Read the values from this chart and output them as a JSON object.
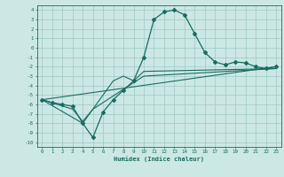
{
  "title": "",
  "xlabel": "Humidex (Indice chaleur)",
  "ylabel": "",
  "xlim": [
    -0.5,
    23.5
  ],
  "ylim": [
    -10.5,
    4.5
  ],
  "yticks": [
    4,
    3,
    2,
    1,
    0,
    -1,
    -2,
    -3,
    -4,
    -5,
    -6,
    -7,
    -8,
    -9,
    -10
  ],
  "xticks": [
    0,
    1,
    2,
    3,
    4,
    5,
    6,
    7,
    8,
    9,
    10,
    11,
    12,
    13,
    14,
    15,
    16,
    17,
    18,
    19,
    20,
    21,
    22,
    23
  ],
  "bg_color": "#cce8e4",
  "grid_color": "#9dc8c4",
  "line_color": "#1a6b60",
  "line1": [
    [
      0,
      -5.5
    ],
    [
      1,
      -5.8
    ],
    [
      2,
      -6.0
    ],
    [
      3,
      -6.2
    ],
    [
      4,
      -8.0
    ],
    [
      5,
      -9.5
    ],
    [
      6,
      -6.8
    ],
    [
      7,
      -5.5
    ],
    [
      8,
      -4.5
    ],
    [
      9,
      -3.5
    ],
    [
      10,
      -1.0
    ],
    [
      11,
      3.0
    ],
    [
      12,
      3.8
    ],
    [
      13,
      4.0
    ],
    [
      14,
      3.5
    ],
    [
      15,
      1.5
    ],
    [
      16,
      -0.5
    ],
    [
      17,
      -1.5
    ],
    [
      18,
      -1.8
    ],
    [
      19,
      -1.5
    ],
    [
      20,
      -1.6
    ],
    [
      21,
      -2.0
    ],
    [
      22,
      -2.2
    ],
    [
      23,
      -2.0
    ]
  ],
  "line2": [
    [
      0,
      -5.5
    ],
    [
      23,
      -2.0
    ]
  ],
  "line3": [
    [
      0,
      -5.5
    ],
    [
      4,
      -8.0
    ],
    [
      5,
      -6.5
    ],
    [
      10,
      -3.0
    ],
    [
      23,
      -2.2
    ]
  ],
  "line4": [
    [
      0,
      -5.5
    ],
    [
      3,
      -6.5
    ],
    [
      4,
      -7.8
    ],
    [
      5,
      -6.5
    ],
    [
      6,
      -5.0
    ],
    [
      7,
      -3.5
    ],
    [
      8,
      -3.0
    ],
    [
      9,
      -3.5
    ],
    [
      10,
      -2.5
    ],
    [
      23,
      -2.2
    ]
  ]
}
